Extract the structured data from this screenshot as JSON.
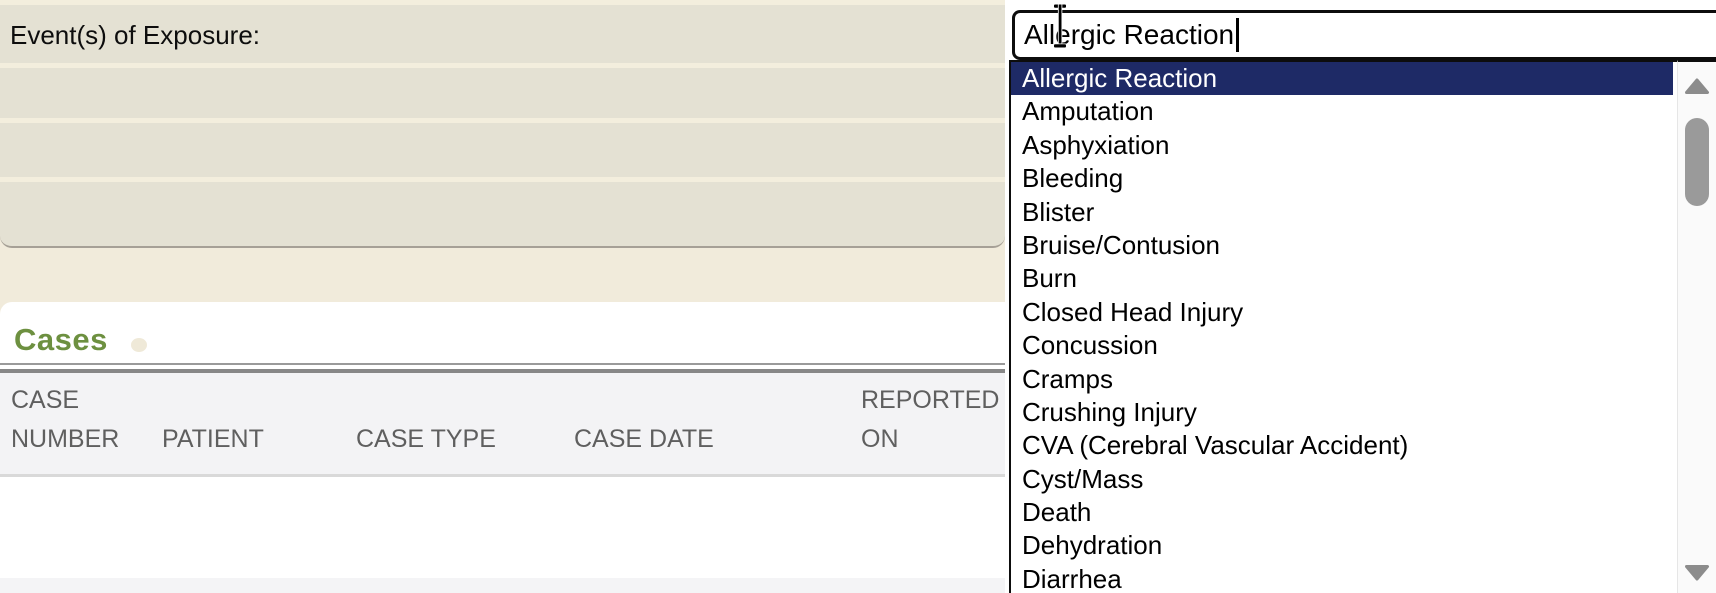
{
  "exposure_form": {
    "label": "Event(s) of Exposure:"
  },
  "event_combobox": {
    "value": "Allergic Reaction",
    "selected_index": 0,
    "options": [
      "Allergic Reaction",
      "Amputation",
      "Asphyxiation",
      "Bleeding",
      "Blister",
      "Bruise/Contusion",
      "Burn",
      "Closed Head Injury",
      "Concussion",
      "Cramps",
      "Crushing Injury",
      "CVA (Cerebral Vascular Accident)",
      "Cyst/Mass",
      "Death",
      "Dehydration",
      "Diarrhea"
    ]
  },
  "cases_section": {
    "title": "Cases",
    "table": {
      "columns": [
        "CASE NUMBER",
        "PATIENT",
        "CASE TYPE",
        "CASE DATE",
        "REPORTED ON"
      ],
      "rows": []
    }
  },
  "colors": {
    "selection_bg": "#1e2a66",
    "selection_text": "#ffffff",
    "section_title": "#6d9040",
    "form_bg": "#e4e1d3",
    "header_bg": "#f3f3f5"
  }
}
